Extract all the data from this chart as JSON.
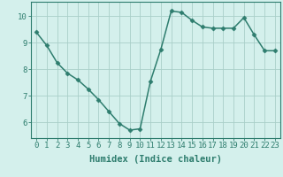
{
  "x": [
    0,
    1,
    2,
    3,
    4,
    5,
    6,
    7,
    8,
    9,
    10,
    11,
    12,
    13,
    14,
    15,
    16,
    17,
    18,
    19,
    20,
    21,
    22,
    23
  ],
  "y": [
    9.4,
    8.9,
    8.25,
    7.85,
    7.6,
    7.25,
    6.85,
    6.4,
    5.95,
    5.7,
    5.75,
    7.55,
    8.75,
    10.2,
    10.15,
    9.85,
    9.6,
    9.55,
    9.55,
    9.55,
    9.95,
    9.3,
    8.7,
    8.7
  ],
  "line_color": "#2e7d6e",
  "marker": "D",
  "marker_size": 2.5,
  "bg_color": "#d4f0ec",
  "grid_color": "#aacfc9",
  "xlabel": "Humidex (Indice chaleur)",
  "ylim": [
    5.4,
    10.55
  ],
  "xlim": [
    -0.5,
    23.5
  ],
  "yticks": [
    6,
    7,
    8,
    9,
    10
  ],
  "xticks": [
    0,
    1,
    2,
    3,
    4,
    5,
    6,
    7,
    8,
    9,
    10,
    11,
    12,
    13,
    14,
    15,
    16,
    17,
    18,
    19,
    20,
    21,
    22,
    23
  ],
  "tick_label_fontsize": 6.5,
  "xlabel_fontsize": 7.5,
  "line_width": 1.1
}
